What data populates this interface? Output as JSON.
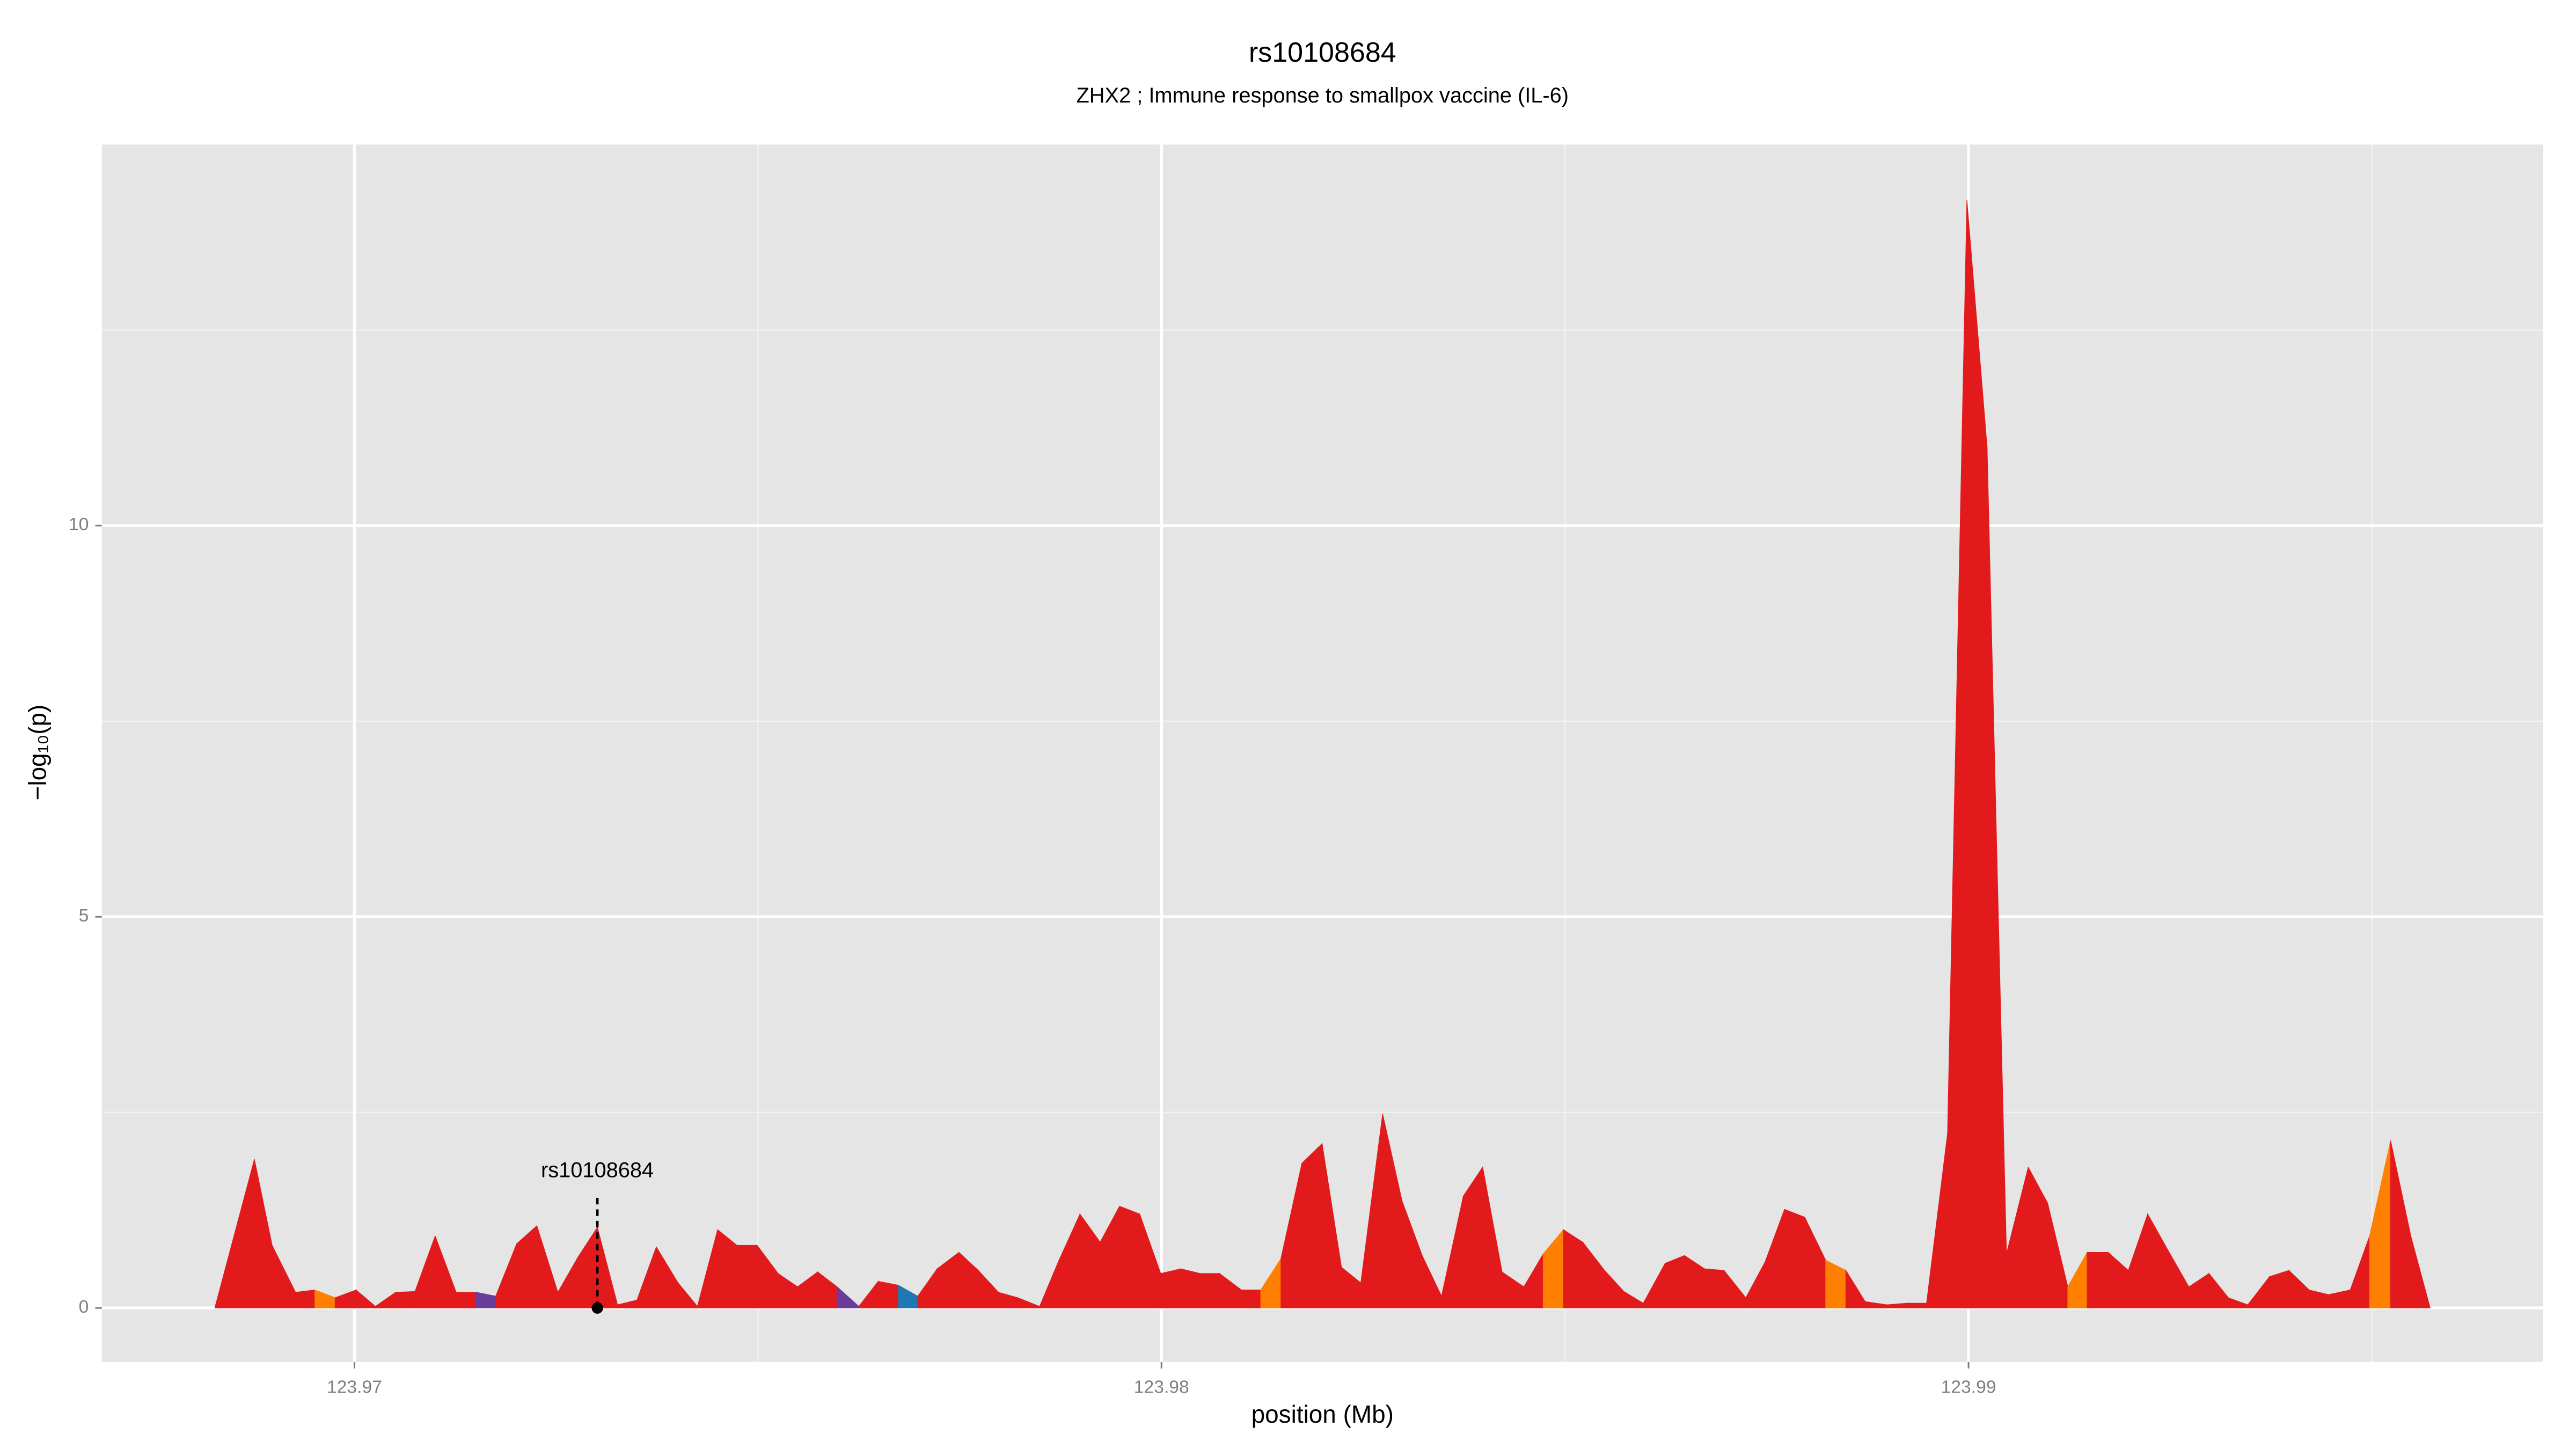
{
  "chart_data": {
    "type": "area",
    "title": "rs10108684",
    "subtitle": "ZHX2 ; Immune response to smallpox vaccine (IL-6)",
    "xlabel": "position (Mb)",
    "ylabel": "−log₁₀(p)",
    "xlim": [
      123.96687,
      123.99712
    ],
    "ylim": [
      -0.69,
      14.87
    ],
    "xticks": [
      123.97,
      123.98,
      123.99
    ],
    "yticks": [
      0,
      5,
      10
    ],
    "x_minor_grid": [
      123.975,
      123.985,
      123.995
    ],
    "y_minor_grid": [
      2.5,
      7.5,
      12.5
    ],
    "grid": true,
    "background": "#e5e5e5",
    "x": [
      123.96827,
      123.96876,
      123.96898,
      123.96927,
      123.96951,
      123.96976,
      123.97002,
      123.97026,
      123.97051,
      123.97075,
      123.971,
      123.97126,
      123.97151,
      123.97175,
      123.97201,
      123.97226,
      123.97252,
      123.97277,
      123.97301,
      123.97326,
      123.9735,
      123.97374,
      123.97401,
      123.97425,
      123.9745,
      123.97474,
      123.97499,
      123.97525,
      123.97549,
      123.97574,
      123.97598,
      123.97625,
      123.97649,
      123.97674,
      123.97698,
      123.97722,
      123.97749,
      123.97773,
      123.97798,
      123.97822,
      123.97849,
      123.97873,
      123.97899,
      123.97924,
      123.97948,
      123.97973,
      123.97999,
      123.98024,
      123.98048,
      123.98072,
      123.98099,
      123.98123,
      123.98148,
      123.98174,
      123.98199,
      123.98223,
      123.98247,
      123.98274,
      123.98298,
      123.98323,
      123.98347,
      123.98374,
      123.98398,
      123.98422,
      123.98449,
      123.98473,
      123.98498,
      123.98522,
      123.98549,
      123.98573,
      123.98597,
      123.98624,
      123.98648,
      123.98673,
      123.98697,
      123.98724,
      123.98748,
      123.98772,
      123.98797,
      123.98823,
      123.98848,
      123.98872,
      123.98899,
      123.98923,
      123.98948,
      123.98974,
      123.98998,
      123.99023,
      123.99047,
      123.99074,
      123.99098,
      123.99123,
      123.99147,
      123.99173,
      123.99198,
      123.99222,
      123.99247,
      123.99273,
      123.99298,
      123.99322,
      123.99346,
      123.99373,
      123.99397,
      123.99422,
      123.99446,
      123.99473,
      123.99497,
      123.99523,
      123.99548,
      123.99572
    ],
    "values": [
      0,
      1.9,
      0.8,
      0.2,
      0.23,
      0.13,
      0.23,
      0.02,
      0.2,
      0.21,
      0.92,
      0.2,
      0.2,
      0.15,
      0.82,
      1.05,
      0.2,
      0.65,
      1.03,
      0.04,
      0.1,
      0.78,
      0.32,
      0.02,
      1.0,
      0.8,
      0.8,
      0.44,
      0.27,
      0.46,
      0.27,
      0.02,
      0.34,
      0.29,
      0.15,
      0.5,
      0.71,
      0.48,
      0.2,
      0.13,
      0.02,
      0.61,
      1.2,
      0.84,
      1.3,
      1.2,
      0.44,
      0.5,
      0.44,
      0.44,
      0.23,
      0.23,
      0.63,
      1.85,
      2.1,
      0.52,
      0.32,
      2.48,
      1.37,
      0.67,
      0.15,
      1.43,
      1.8,
      0.46,
      0.27,
      0.69,
      1.0,
      0.84,
      0.48,
      0.21,
      0.06,
      0.57,
      0.67,
      0.5,
      0.48,
      0.13,
      0.59,
      1.26,
      1.16,
      0.61,
      0.48,
      0.08,
      0.04,
      0.06,
      0.06,
      2.23,
      14.16,
      11.0,
      0.69,
      1.8,
      1.34,
      0.27,
      0.71,
      0.71,
      0.48,
      1.2,
      0.74,
      0.27,
      0.44,
      0.13,
      0.04,
      0.4,
      0.48,
      0.23,
      0.17,
      0.23,
      0.92,
      2.14,
      0.92,
      0
    ],
    "colors": [
      "#e31a1c",
      "#e31a1c",
      "#e31a1c",
      "#e31a1c",
      "#ff7f00",
      "#e31a1c",
      "#e31a1c",
      "#e31a1c",
      "#e31a1c",
      "#e31a1c",
      "#e31a1c",
      "#e31a1c",
      "#6a3d9a",
      "#e31a1c",
      "#e31a1c",
      "#e31a1c",
      "#e31a1c",
      "#e31a1c",
      "#e31a1c",
      "#e31a1c",
      "#e31a1c",
      "#e31a1c",
      "#e31a1c",
      "#e31a1c",
      "#e31a1c",
      "#e31a1c",
      "#e31a1c",
      "#e31a1c",
      "#e31a1c",
      "#e31a1c",
      "#6a3d9a",
      "#e31a1c",
      "#e31a1c",
      "#1f78b4",
      "#e31a1c",
      "#e31a1c",
      "#e31a1c",
      "#e31a1c",
      "#e31a1c",
      "#e31a1c",
      "#e31a1c",
      "#e31a1c",
      "#e31a1c",
      "#e31a1c",
      "#e31a1c",
      "#e31a1c",
      "#e31a1c",
      "#e31a1c",
      "#e31a1c",
      "#e31a1c",
      "#e31a1c",
      "#ff7f00",
      "#e31a1c",
      "#e31a1c",
      "#e31a1c",
      "#e31a1c",
      "#e31a1c",
      "#e31a1c",
      "#e31a1c",
      "#e31a1c",
      "#e31a1c",
      "#e31a1c",
      "#e31a1c",
      "#e31a1c",
      "#e31a1c",
      "#ff7f00",
      "#e31a1c",
      "#e31a1c",
      "#e31a1c",
      "#e31a1c",
      "#e31a1c",
      "#e31a1c",
      "#e31a1c",
      "#e31a1c",
      "#e31a1c",
      "#e31a1c",
      "#e31a1c",
      "#e31a1c",
      "#e31a1c",
      "#ff7f00",
      "#e31a1c",
      "#e31a1c",
      "#e31a1c",
      "#e31a1c",
      "#e31a1c",
      "#e31a1c",
      "#e31a1c",
      "#e31a1c",
      "#e31a1c",
      "#e31a1c",
      "#e31a1c",
      "#ff7f00",
      "#e31a1c",
      "#e31a1c",
      "#e31a1c",
      "#e31a1c",
      "#e31a1c",
      "#e31a1c",
      "#e31a1c",
      "#e31a1c",
      "#e31a1c",
      "#e31a1c",
      "#e31a1c",
      "#e31a1c",
      "#e31a1c",
      "#e31a1c",
      "#ff7f00",
      "#e31a1c",
      "#e31a1c",
      "#e31a1c"
    ],
    "annotation": {
      "label": "rs10108684",
      "x": 123.97301,
      "y": 0
    }
  }
}
